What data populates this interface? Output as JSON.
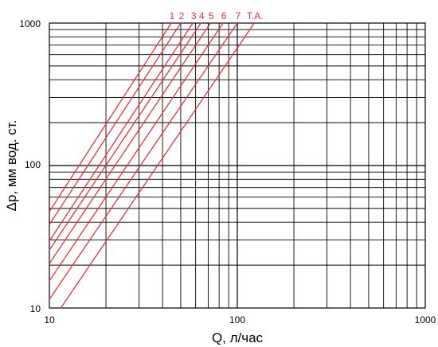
{
  "chart_data": {
    "type": "line",
    "scale": {
      "x": "log",
      "y": "log"
    },
    "xlabel": "Q, л/час",
    "ylabel": "Δp, мм вод. ст.",
    "xlim": [
      10,
      1000
    ],
    "ylim": [
      10,
      1000
    ],
    "x_ticks": [
      "10",
      "100",
      "1000"
    ],
    "y_ticks": [
      "10",
      "100",
      "1000"
    ],
    "grid": true,
    "line_color": "#e8303a",
    "series": [
      {
        "name": "1",
        "points": [
          [
            10,
            47.5
          ],
          [
            44.5,
            1000
          ]
        ]
      },
      {
        "name": "2",
        "points": [
          [
            10,
            38.5
          ],
          [
            50,
            1000
          ]
        ]
      },
      {
        "name": "3",
        "points": [
          [
            10,
            29.5
          ],
          [
            58,
            1000
          ]
        ]
      },
      {
        "name": "4",
        "points": [
          [
            10,
            25.5
          ],
          [
            64,
            1000
          ]
        ]
      },
      {
        "name": "5",
        "points": [
          [
            10,
            20.5
          ],
          [
            72,
            1000
          ]
        ]
      },
      {
        "name": "6",
        "points": [
          [
            10,
            15.5
          ],
          [
            84,
            1000
          ]
        ]
      },
      {
        "name": "7",
        "points": [
          [
            10,
            11.5
          ],
          [
            100,
            1000
          ]
        ]
      },
      {
        "name": "Т.А.",
        "points": [
          [
            11.5,
            10
          ],
          [
            123,
            1000
          ]
        ]
      }
    ]
  }
}
